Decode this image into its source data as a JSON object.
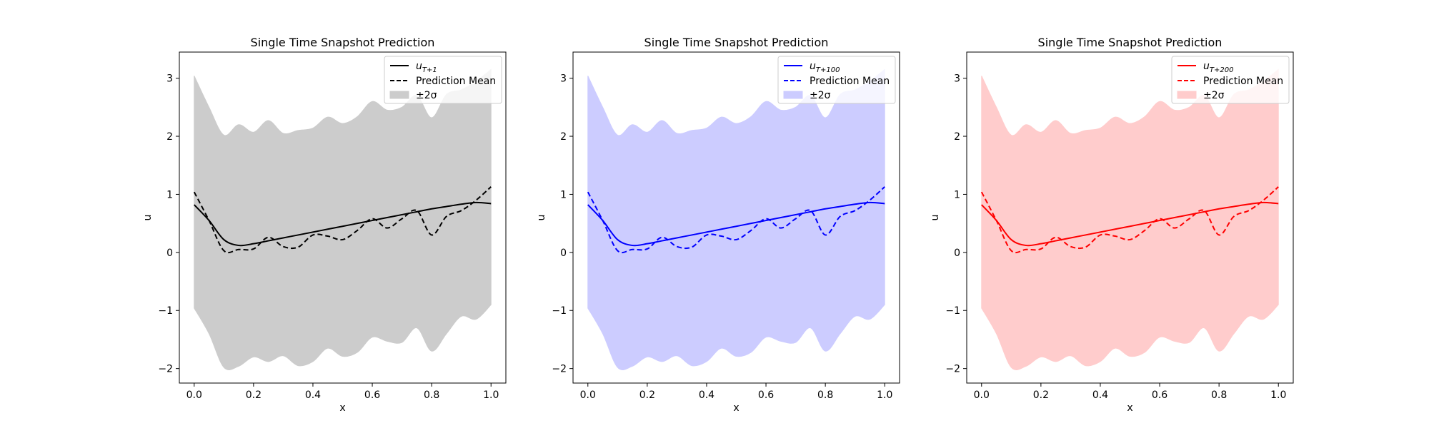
{
  "chart_data": [
    {
      "type": "line",
      "title": "Single Time Snapshot Prediction",
      "xlabel": "x",
      "ylabel": "u",
      "xlim": [
        -0.05,
        1.05
      ],
      "ylim": [
        -2.25,
        3.45
      ],
      "xticks": [
        0.0,
        0.2,
        0.4,
        0.6,
        0.8,
        1.0
      ],
      "xtick_labels": [
        "0.0",
        "0.2",
        "0.4",
        "0.6",
        "0.8",
        "1.0"
      ],
      "yticks": [
        -2,
        -1,
        0,
        1,
        2,
        3
      ],
      "ytick_labels": [
        "−2",
        "−1",
        "0",
        "1",
        "2",
        "3"
      ],
      "color": "#000000",
      "band_color": "#cccccc",
      "legend_position": "upper right",
      "legend": {
        "truth_base": "u",
        "truth_sub": "T+1",
        "mean": "Prediction Mean",
        "band": "±2σ"
      },
      "x": [
        0.0,
        0.05,
        0.1,
        0.15,
        0.2,
        0.25,
        0.3,
        0.35,
        0.4,
        0.45,
        0.5,
        0.55,
        0.6,
        0.65,
        0.7,
        0.75,
        0.8,
        0.85,
        0.9,
        0.95,
        1.0
      ],
      "series": [
        {
          "name": "u_{T+1}",
          "role": "truth",
          "values": [
            0.82,
            0.55,
            0.22,
            0.12,
            0.15,
            0.2,
            0.25,
            0.3,
            0.35,
            0.4,
            0.45,
            0.5,
            0.55,
            0.6,
            0.65,
            0.7,
            0.75,
            0.79,
            0.83,
            0.86,
            0.84
          ]
        },
        {
          "name": "Prediction Mean",
          "role": "mean",
          "values": [
            1.04,
            0.55,
            0.03,
            0.05,
            0.06,
            0.26,
            0.1,
            0.09,
            0.3,
            0.28,
            0.22,
            0.38,
            0.58,
            0.42,
            0.58,
            0.72,
            0.3,
            0.62,
            0.72,
            0.9,
            1.13
          ]
        },
        {
          "name": "+2σ",
          "role": "upper",
          "values": [
            3.04,
            2.5,
            2.02,
            2.2,
            2.07,
            2.27,
            2.05,
            2.1,
            2.14,
            2.33,
            2.22,
            2.34,
            2.6,
            2.45,
            2.5,
            2.7,
            2.32,
            2.72,
            2.8,
            2.95,
            3.15
          ]
        },
        {
          "name": "−2σ",
          "role": "lower",
          "values": [
            -0.96,
            -1.4,
            -1.98,
            -1.96,
            -1.8,
            -1.88,
            -1.78,
            -1.95,
            -1.88,
            -1.65,
            -1.79,
            -1.72,
            -1.46,
            -1.53,
            -1.55,
            -1.3,
            -1.7,
            -1.4,
            -1.1,
            -1.15,
            -0.9
          ]
        }
      ]
    },
    {
      "type": "line",
      "title": "Single Time Snapshot Prediction",
      "xlabel": "x",
      "ylabel": "u",
      "xlim": [
        -0.05,
        1.05
      ],
      "ylim": [
        -2.25,
        3.45
      ],
      "xticks": [
        0.0,
        0.2,
        0.4,
        0.6,
        0.8,
        1.0
      ],
      "xtick_labels": [
        "0.0",
        "0.2",
        "0.4",
        "0.6",
        "0.8",
        "1.0"
      ],
      "yticks": [
        -2,
        -1,
        0,
        1,
        2,
        3
      ],
      "ytick_labels": [
        "−2",
        "−1",
        "0",
        "1",
        "2",
        "3"
      ],
      "color": "#0000ff",
      "band_color": "#ccccff",
      "legend_position": "upper right",
      "legend": {
        "truth_base": "u",
        "truth_sub": "T+100",
        "mean": "Prediction Mean",
        "band": "±2σ"
      },
      "x": [
        0.0,
        0.05,
        0.1,
        0.15,
        0.2,
        0.25,
        0.3,
        0.35,
        0.4,
        0.45,
        0.5,
        0.55,
        0.6,
        0.65,
        0.7,
        0.75,
        0.8,
        0.85,
        0.9,
        0.95,
        1.0
      ],
      "series": [
        {
          "name": "u_{T+100}",
          "role": "truth",
          "values": [
            0.82,
            0.55,
            0.22,
            0.12,
            0.15,
            0.2,
            0.25,
            0.3,
            0.35,
            0.4,
            0.45,
            0.5,
            0.55,
            0.6,
            0.65,
            0.7,
            0.75,
            0.79,
            0.83,
            0.86,
            0.84
          ]
        },
        {
          "name": "Prediction Mean",
          "role": "mean",
          "values": [
            1.04,
            0.55,
            0.03,
            0.05,
            0.06,
            0.26,
            0.1,
            0.09,
            0.3,
            0.28,
            0.22,
            0.38,
            0.58,
            0.42,
            0.58,
            0.72,
            0.3,
            0.62,
            0.72,
            0.9,
            1.13
          ]
        },
        {
          "name": "+2σ",
          "role": "upper",
          "values": [
            3.04,
            2.5,
            2.02,
            2.2,
            2.07,
            2.27,
            2.05,
            2.1,
            2.14,
            2.33,
            2.22,
            2.34,
            2.6,
            2.45,
            2.5,
            2.7,
            2.32,
            2.72,
            2.8,
            2.95,
            3.15
          ]
        },
        {
          "name": "−2σ",
          "role": "lower",
          "values": [
            -0.96,
            -1.4,
            -1.98,
            -1.96,
            -1.8,
            -1.88,
            -1.78,
            -1.95,
            -1.88,
            -1.65,
            -1.79,
            -1.72,
            -1.46,
            -1.53,
            -1.55,
            -1.3,
            -1.7,
            -1.4,
            -1.1,
            -1.15,
            -0.9
          ]
        }
      ]
    },
    {
      "type": "line",
      "title": "Single Time Snapshot Prediction",
      "xlabel": "x",
      "ylabel": "u",
      "xlim": [
        -0.05,
        1.05
      ],
      "ylim": [
        -2.25,
        3.45
      ],
      "xticks": [
        0.0,
        0.2,
        0.4,
        0.6,
        0.8,
        1.0
      ],
      "xtick_labels": [
        "0.0",
        "0.2",
        "0.4",
        "0.6",
        "0.8",
        "1.0"
      ],
      "yticks": [
        -2,
        -1,
        0,
        1,
        2,
        3
      ],
      "ytick_labels": [
        "−2",
        "−1",
        "0",
        "1",
        "2",
        "3"
      ],
      "color": "#ff0000",
      "band_color": "#ffcccc",
      "legend_position": "upper right",
      "legend": {
        "truth_base": "u",
        "truth_sub": "T+200",
        "mean": "Prediction Mean",
        "band": "±2σ"
      },
      "x": [
        0.0,
        0.05,
        0.1,
        0.15,
        0.2,
        0.25,
        0.3,
        0.35,
        0.4,
        0.45,
        0.5,
        0.55,
        0.6,
        0.65,
        0.7,
        0.75,
        0.8,
        0.85,
        0.9,
        0.95,
        1.0
      ],
      "series": [
        {
          "name": "u_{T+200}",
          "role": "truth",
          "values": [
            0.82,
            0.55,
            0.22,
            0.12,
            0.15,
            0.2,
            0.25,
            0.3,
            0.35,
            0.4,
            0.45,
            0.5,
            0.55,
            0.6,
            0.65,
            0.7,
            0.75,
            0.79,
            0.83,
            0.86,
            0.84
          ]
        },
        {
          "name": "Prediction Mean",
          "role": "mean",
          "values": [
            1.04,
            0.55,
            0.03,
            0.05,
            0.06,
            0.26,
            0.1,
            0.09,
            0.3,
            0.28,
            0.22,
            0.38,
            0.58,
            0.42,
            0.58,
            0.72,
            0.3,
            0.62,
            0.72,
            0.9,
            1.13
          ]
        },
        {
          "name": "+2σ",
          "role": "upper",
          "values": [
            3.04,
            2.5,
            2.02,
            2.2,
            2.07,
            2.27,
            2.05,
            2.1,
            2.14,
            2.33,
            2.22,
            2.34,
            2.6,
            2.45,
            2.5,
            2.7,
            2.32,
            2.72,
            2.8,
            2.95,
            3.15
          ]
        },
        {
          "name": "−2σ",
          "role": "lower",
          "values": [
            -0.96,
            -1.4,
            -1.98,
            -1.96,
            -1.8,
            -1.88,
            -1.78,
            -1.95,
            -1.88,
            -1.65,
            -1.79,
            -1.72,
            -1.46,
            -1.53,
            -1.55,
            -1.3,
            -1.7,
            -1.4,
            -1.1,
            -1.15,
            -0.9
          ]
        }
      ]
    }
  ]
}
